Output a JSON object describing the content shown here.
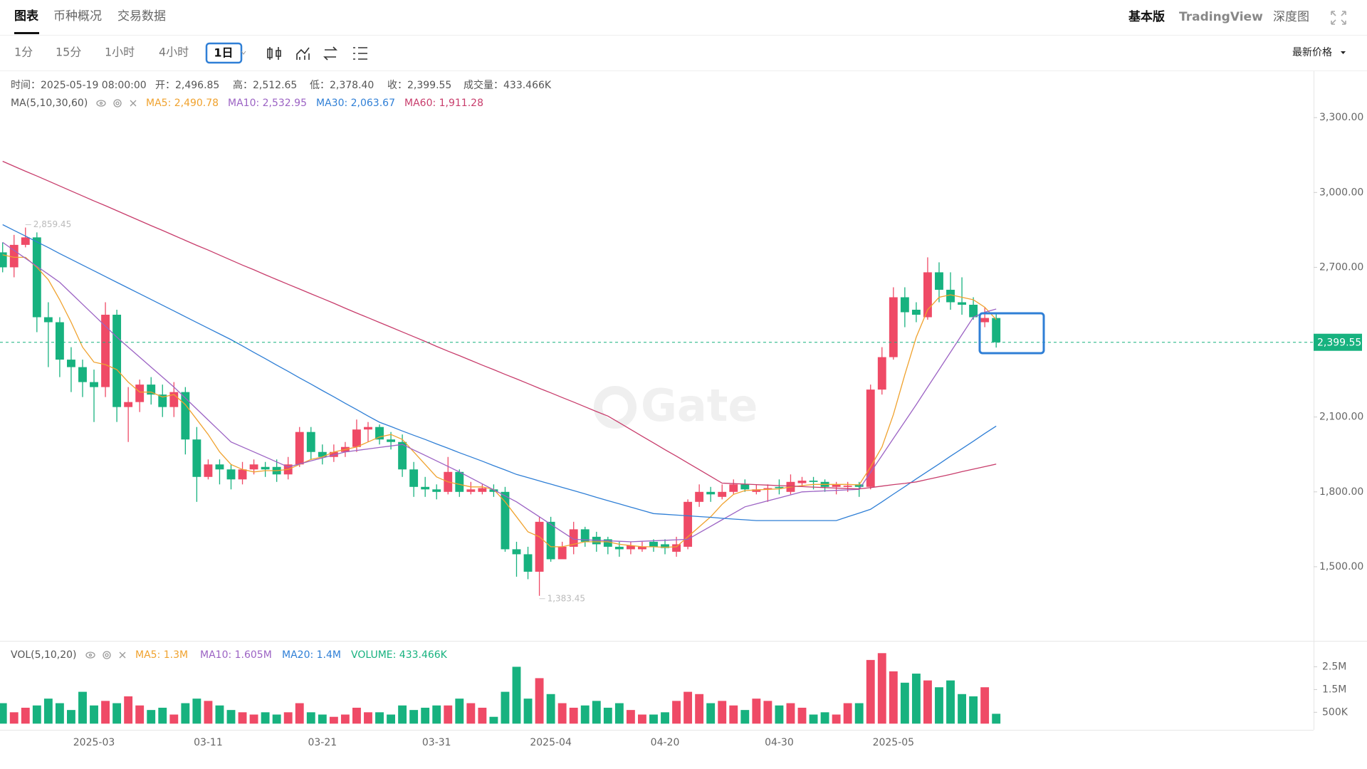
{
  "tabs": [
    "图表",
    "币种概况",
    "交易数据"
  ],
  "view_modes": [
    "基本版",
    "TradingView",
    "深度图"
  ],
  "intervals": [
    "1分",
    "15分",
    "1小时",
    "4小时",
    "1日"
  ],
  "price_type": "最新价格",
  "info": [
    "时间：2025-05-19 08:00:00",
    "开：2,496.85",
    "高：2,512.65",
    "低：2,378.40",
    "收：2,399.55",
    "成交量：433.466K"
  ],
  "watermark": "Gate",
  "chart_data": {
    "type": "candlestick",
    "categories": [
      null,
      null,
      null,
      null,
      null,
      null,
      null,
      null,
      "2025-03",
      null,
      null,
      null,
      null,
      null,
      null,
      null,
      null,
      null,
      "03-11",
      null,
      null,
      null,
      null,
      null,
      null,
      null,
      null,
      null,
      "03-21",
      null,
      null,
      null,
      null,
      null,
      null,
      null,
      null,
      null,
      "03-31",
      null,
      null,
      null,
      null,
      null,
      null,
      null,
      null,
      null,
      "2025-04",
      null,
      null,
      null,
      null,
      null,
      null,
      null,
      null,
      null,
      "04-20",
      null,
      null,
      null,
      null,
      null,
      null,
      null,
      null,
      null,
      "04-30",
      null,
      null,
      null,
      null,
      null,
      null,
      null,
      null,
      null,
      "2025-05",
      null,
      null,
      null,
      null,
      null,
      null,
      null,
      null,
      null
    ],
    "open": [
      2760,
      2700,
      2790,
      2820,
      2500,
      2480,
      2330,
      2300,
      2240,
      2220,
      2510,
      2140,
      2160,
      2230,
      2190,
      2140,
      2200,
      2010,
      1860,
      1910,
      1890,
      1850,
      1890,
      1900,
      1900,
      1870,
      1910,
      2040,
      1960,
      1940,
      1960,
      1980,
      2050,
      2060,
      2010,
      2000,
      1890,
      1820,
      1810,
      1800,
      1880,
      1800,
      1800,
      1810,
      1800,
      1570,
      1550,
      1480,
      1680,
      1530,
      1580,
      1650,
      1620,
      1610,
      1580,
      1570,
      1570,
      1600,
      1590,
      1560,
      1580,
      1760,
      1800,
      1780,
      1800,
      1830,
      1800,
      1810,
      1820,
      1800,
      1835,
      1845,
      1840,
      1820,
      1820,
      1830,
      1820,
      2210,
      2340,
      2580,
      2530,
      2500,
      2680,
      2610,
      2560,
      2550,
      2480,
      2496.85
    ],
    "high": [
      2800,
      2830,
      2859.45,
      2840,
      2560,
      2500,
      2380,
      2330,
      2290,
      2560,
      2530,
      2220,
      2250,
      2260,
      2230,
      2240,
      2220,
      2060,
      1930,
      1930,
      1910,
      1920,
      1930,
      1920,
      1930,
      1940,
      2060,
      2060,
      1990,
      1990,
      2000,
      2090,
      2080,
      2070,
      2040,
      2030,
      1920,
      1860,
      1830,
      1940,
      1890,
      1840,
      1830,
      1830,
      1820,
      1600,
      1580,
      1700,
      1700,
      1600,
      1680,
      1660,
      1640,
      1620,
      1600,
      1600,
      1600,
      1610,
      1610,
      1620,
      1770,
      1830,
      1820,
      1830,
      1850,
      1850,
      1830,
      1830,
      1850,
      1870,
      1860,
      1860,
      1850,
      1840,
      1840,
      1840,
      2230,
      2380,
      2620,
      2620,
      2560,
      2740,
      2720,
      2680,
      2660,
      2580,
      2540,
      2512.65
    ],
    "low": [
      2680,
      2660,
      2780,
      2440,
      2300,
      2260,
      2200,
      2180,
      2080,
      2180,
      2080,
      2000,
      2120,
      2150,
      2100,
      2100,
      1950,
      1760,
      1850,
      1830,
      1810,
      1830,
      1870,
      1860,
      1840,
      1850,
      1900,
      1930,
      1910,
      1920,
      1940,
      1960,
      2000,
      1990,
      1970,
      1860,
      1780,
      1780,
      1770,
      1790,
      1780,
      1790,
      1790,
      1780,
      1560,
      1460,
      1450,
      1383.45,
      1520,
      1540,
      1550,
      1580,
      1560,
      1550,
      1540,
      1550,
      1560,
      1560,
      1550,
      1540,
      1570,
      1740,
      1760,
      1770,
      1790,
      1800,
      1790,
      1760,
      1790,
      1790,
      1820,
      1810,
      1800,
      1790,
      1800,
      1780,
      1810,
      2190,
      2330,
      2460,
      2480,
      2490,
      2560,
      2530,
      2510,
      2490,
      2460,
      2378.4
    ],
    "close": [
      2700,
      2790,
      2820,
      2500,
      2480,
      2330,
      2300,
      2240,
      2220,
      2510,
      2140,
      2160,
      2230,
      2190,
      2140,
      2200,
      2010,
      1860,
      1910,
      1890,
      1850,
      1890,
      1910,
      1890,
      1870,
      1910,
      2040,
      1960,
      1940,
      1960,
      1980,
      2050,
      2060,
      2010,
      2000,
      1890,
      1820,
      1810,
      1800,
      1880,
      1800,
      1810,
      1815,
      1800,
      1570,
      1550,
      1480,
      1680,
      1530,
      1580,
      1650,
      1600,
      1590,
      1580,
      1570,
      1585,
      1580,
      1580,
      1575,
      1590,
      1760,
      1800,
      1790,
      1800,
      1830,
      1810,
      1810,
      1815,
      1815,
      1840,
      1845,
      1840,
      1820,
      1830,
      1825,
      1820,
      2210,
      2340,
      2580,
      2520,
      2510,
      2680,
      2610,
      2560,
      2550,
      2500,
      2497,
      2399.55
    ],
    "colors": {
      "up": "#ef4a66",
      "down": "#17b27f"
    },
    "ma_title": "MA(5,10,30,60)",
    "ma_series": [
      {
        "label": "MA5: 2,490.78",
        "color": "#f0a22e",
        "values": [
          2750,
          2740,
          2740,
          2700,
          2650,
          2570,
          2480,
          2380,
          2320,
          2310,
          2290,
          2240,
          2200,
          2200,
          2180,
          2190,
          2150,
          2090,
          2030,
          1960,
          1910,
          1890,
          1880,
          1885,
          1885,
          1890,
          1910,
          1930,
          1940,
          1960,
          1970,
          1980,
          2000,
          2020,
          2030,
          2010,
          1960,
          1910,
          1860,
          1840,
          1830,
          1820,
          1820,
          1810,
          1760,
          1700,
          1640,
          1620,
          1580,
          1580,
          1590,
          1600,
          1600,
          1600,
          1590,
          1585,
          1580,
          1580,
          1578,
          1580,
          1620,
          1660,
          1700,
          1750,
          1790,
          1805,
          1808,
          1810,
          1812,
          1820,
          1825,
          1830,
          1830,
          1830,
          1830,
          1828,
          1900,
          1980,
          2110,
          2270,
          2420,
          2530,
          2580,
          2590,
          2580,
          2570,
          2540,
          2490.78
        ]
      },
      {
        "label": "MA10: 2,532.95",
        "color": "#9c63c4",
        "values": [
          2800,
          2768,
          2736,
          2704,
          2672,
          2640,
          2596,
          2552,
          2508,
          2464,
          2420,
          2380,
          2340,
          2300,
          2260,
          2220,
          2176,
          2132,
          2088,
          2044,
          2000,
          1980,
          1960,
          1940,
          1920,
          1900,
          1912,
          1924,
          1936,
          1948,
          1960,
          1966,
          1972,
          1978,
          1984,
          1990,
          1968,
          1946,
          1924,
          1902,
          1880,
          1856,
          1832,
          1808,
          1784,
          1760,
          1730,
          1700,
          1670,
          1640,
          1610,
          1608,
          1606,
          1604,
          1602,
          1600,
          1602,
          1604,
          1606,
          1608,
          1610,
          1636,
          1662,
          1688,
          1714,
          1740,
          1752,
          1764,
          1776,
          1788,
          1800,
          1802,
          1804,
          1806,
          1808,
          1810,
          1878,
          1946,
          2014,
          2082,
          2150,
          2220,
          2290,
          2360,
          2430,
          2500,
          2520,
          2532.95
        ]
      },
      {
        "label": "MA30: 2,063.67",
        "color": "#2f7fd6",
        "values": [
          2871,
          2848,
          2825,
          2802,
          2779,
          2755,
          2732,
          2709,
          2686,
          2663,
          2640,
          2617,
          2594,
          2571,
          2548,
          2525,
          2502,
          2479,
          2456,
          2433,
          2410,
          2385,
          2359,
          2334,
          2308,
          2283,
          2257,
          2232,
          2206,
          2181,
          2155,
          2130,
          2104,
          2079,
          2062,
          2044,
          2027,
          2010,
          1992,
          1975,
          1957,
          1940,
          1923,
          1905,
          1888,
          1870,
          1857,
          1844,
          1831,
          1818,
          1805,
          1792,
          1778,
          1765,
          1752,
          1739,
          1726,
          1713,
          1710,
          1707,
          1704,
          1701,
          1698,
          1694,
          1691,
          1688,
          1685,
          1685,
          1685,
          1685,
          1685,
          1685,
          1685,
          1685,
          1700,
          1715,
          1730,
          1760,
          1791,
          1821,
          1852,
          1882,
          1912,
          1943,
          1973,
          2003,
          2034,
          2063.67
        ]
      },
      {
        "label": "MA60: 1,911.28",
        "color": "#c83d6c",
        "values": [
          3125,
          3105,
          3085,
          3066,
          3046,
          3026,
          3006,
          2986,
          2966,
          2947,
          2927,
          2907,
          2887,
          2867,
          2848,
          2828,
          2808,
          2788,
          2769,
          2749,
          2729,
          2709,
          2690,
          2670,
          2651,
          2632,
          2613,
          2594,
          2575,
          2556,
          2536,
          2517,
          2498,
          2479,
          2460,
          2441,
          2422,
          2403,
          2383,
          2364,
          2346,
          2327,
          2308,
          2290,
          2271,
          2253,
          2234,
          2215,
          2197,
          2178,
          2160,
          2141,
          2122,
          2104,
          2077,
          2050,
          2023,
          1996,
          1969,
          1943,
          1916,
          1889,
          1862,
          1835,
          1833,
          1831,
          1829,
          1827,
          1825,
          1823,
          1821,
          1819,
          1817,
          1815,
          1813,
          1812,
          1817,
          1823,
          1829,
          1834,
          1840,
          1850,
          1860,
          1870,
          1881,
          1891,
          1901,
          1911.28
        ]
      }
    ],
    "ylim": [
      1203,
      3486
    ],
    "yticks": [
      {
        "value": 3300,
        "label": "3,300.00"
      },
      {
        "value": 3000,
        "label": "3,000.00"
      },
      {
        "value": 2700,
        "label": "2,700.00"
      },
      {
        "value": 2100,
        "label": "2,100.00"
      },
      {
        "value": 1800,
        "label": "1,800.00"
      },
      {
        "value": 1500,
        "label": "1,500.00"
      }
    ],
    "last_price": {
      "value": 2399.55,
      "label": "2,399.55"
    },
    "annotations": [
      {
        "value": 2859.45,
        "label": "2,859.45"
      },
      {
        "value": 1383.45,
        "label": "1,383.45"
      }
    ],
    "volume": {
      "title": "VOL(5,10,20)",
      "legend": [
        {
          "text": "MA5: 1.3M",
          "color": "#f0a22e"
        },
        {
          "text": "MA10: 1.605M",
          "color": "#9c63c4"
        },
        {
          "text": "MA20: 1.4M",
          "color": "#2f7fd6"
        },
        {
          "text": "VOLUME: 433.466K",
          "color": "#17b27f"
        }
      ],
      "values": [
        900000,
        500000,
        700000,
        800000,
        1100000,
        900000,
        600000,
        1400000,
        800000,
        1000000,
        900000,
        1200000,
        800000,
        600000,
        700000,
        400000,
        900000,
        1100000,
        1000000,
        800000,
        600000,
        500000,
        400000,
        500000,
        400000,
        500000,
        900000,
        500000,
        400000,
        300000,
        400000,
        700000,
        500000,
        500000,
        400000,
        800000,
        600000,
        700000,
        800000,
        800000,
        1100000,
        900000,
        700000,
        300000,
        1400000,
        2500000,
        1100000,
        2000000,
        1300000,
        900000,
        700000,
        800000,
        1000000,
        700000,
        900000,
        600000,
        400000,
        400000,
        500000,
        1000000,
        1400000,
        1300000,
        900000,
        1000000,
        800000,
        600000,
        1100000,
        1000000,
        800000,
        900000,
        700000,
        400000,
        500000,
        400000,
        900000,
        900000,
        2800000,
        3100000,
        2300000,
        1800000,
        2200000,
        1900000,
        1600000,
        1900000,
        1300000,
        1200000,
        1600000,
        433466
      ],
      "ylim": [
        0,
        3610000
      ],
      "yticks": [
        {
          "value": 2500000,
          "label": "2.5M"
        },
        {
          "value": 1500000,
          "label": "1.5M"
        },
        {
          "value": 500000,
          "label": "500K"
        }
      ]
    }
  }
}
